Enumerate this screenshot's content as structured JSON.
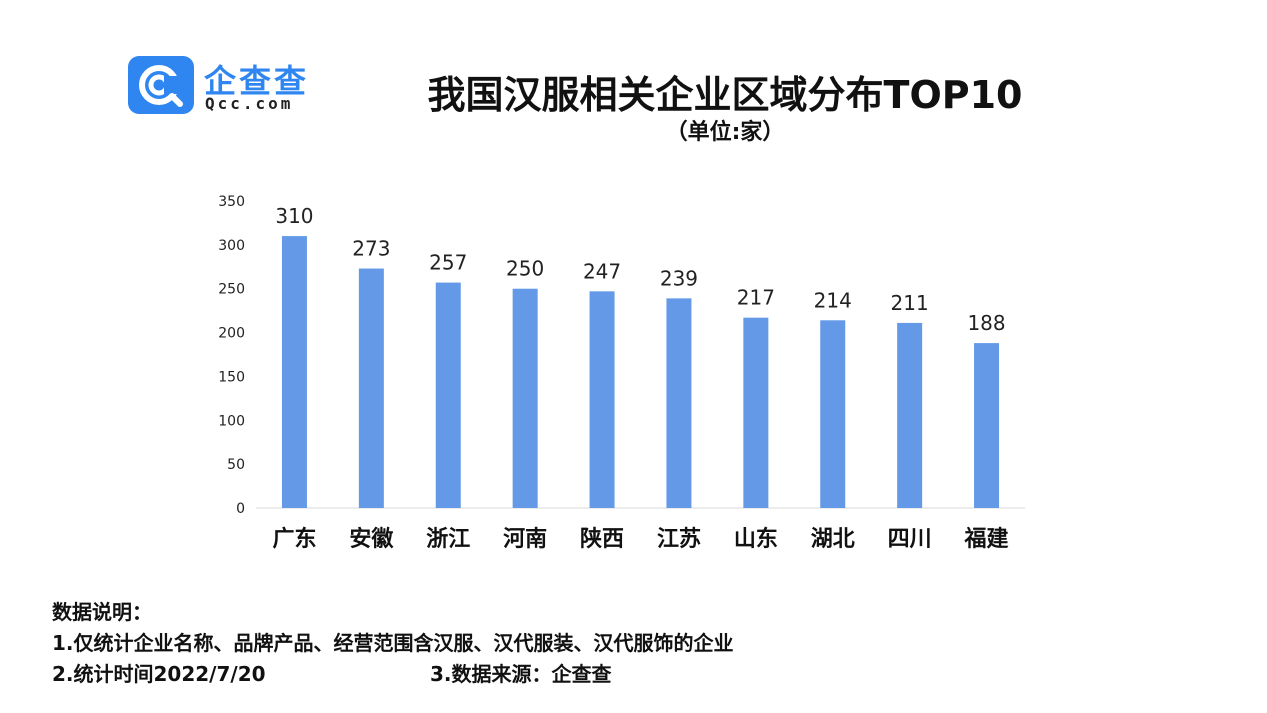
{
  "brand": {
    "name": "企查查",
    "domain": "Qcc.com",
    "color": "#2f86f0"
  },
  "title": "我国汉服相关企业区域分布TOP10",
  "subtitle": "（单位:家）",
  "chart_data": {
    "type": "bar",
    "categories": [
      "广东",
      "安徽",
      "浙江",
      "河南",
      "陕西",
      "江苏",
      "山东",
      "湖北",
      "四川",
      "福建"
    ],
    "values": [
      310,
      273,
      257,
      250,
      247,
      239,
      217,
      214,
      211,
      188
    ],
    "ylim": [
      0,
      350
    ],
    "yticks": [
      "0",
      "50",
      "100",
      "150",
      "200",
      "250",
      "300",
      "350"
    ],
    "bar_color": "#6399e6",
    "grid": false,
    "data_labels": true
  },
  "notes": {
    "heading": "数据说明：",
    "line1": "1.仅统计企业名称、品牌产品、经营范围含汉服、汉代服装、汉代服饰的企业",
    "line2": "2.统计时间2022/7/20",
    "line3": "3.数据来源：企查查"
  }
}
